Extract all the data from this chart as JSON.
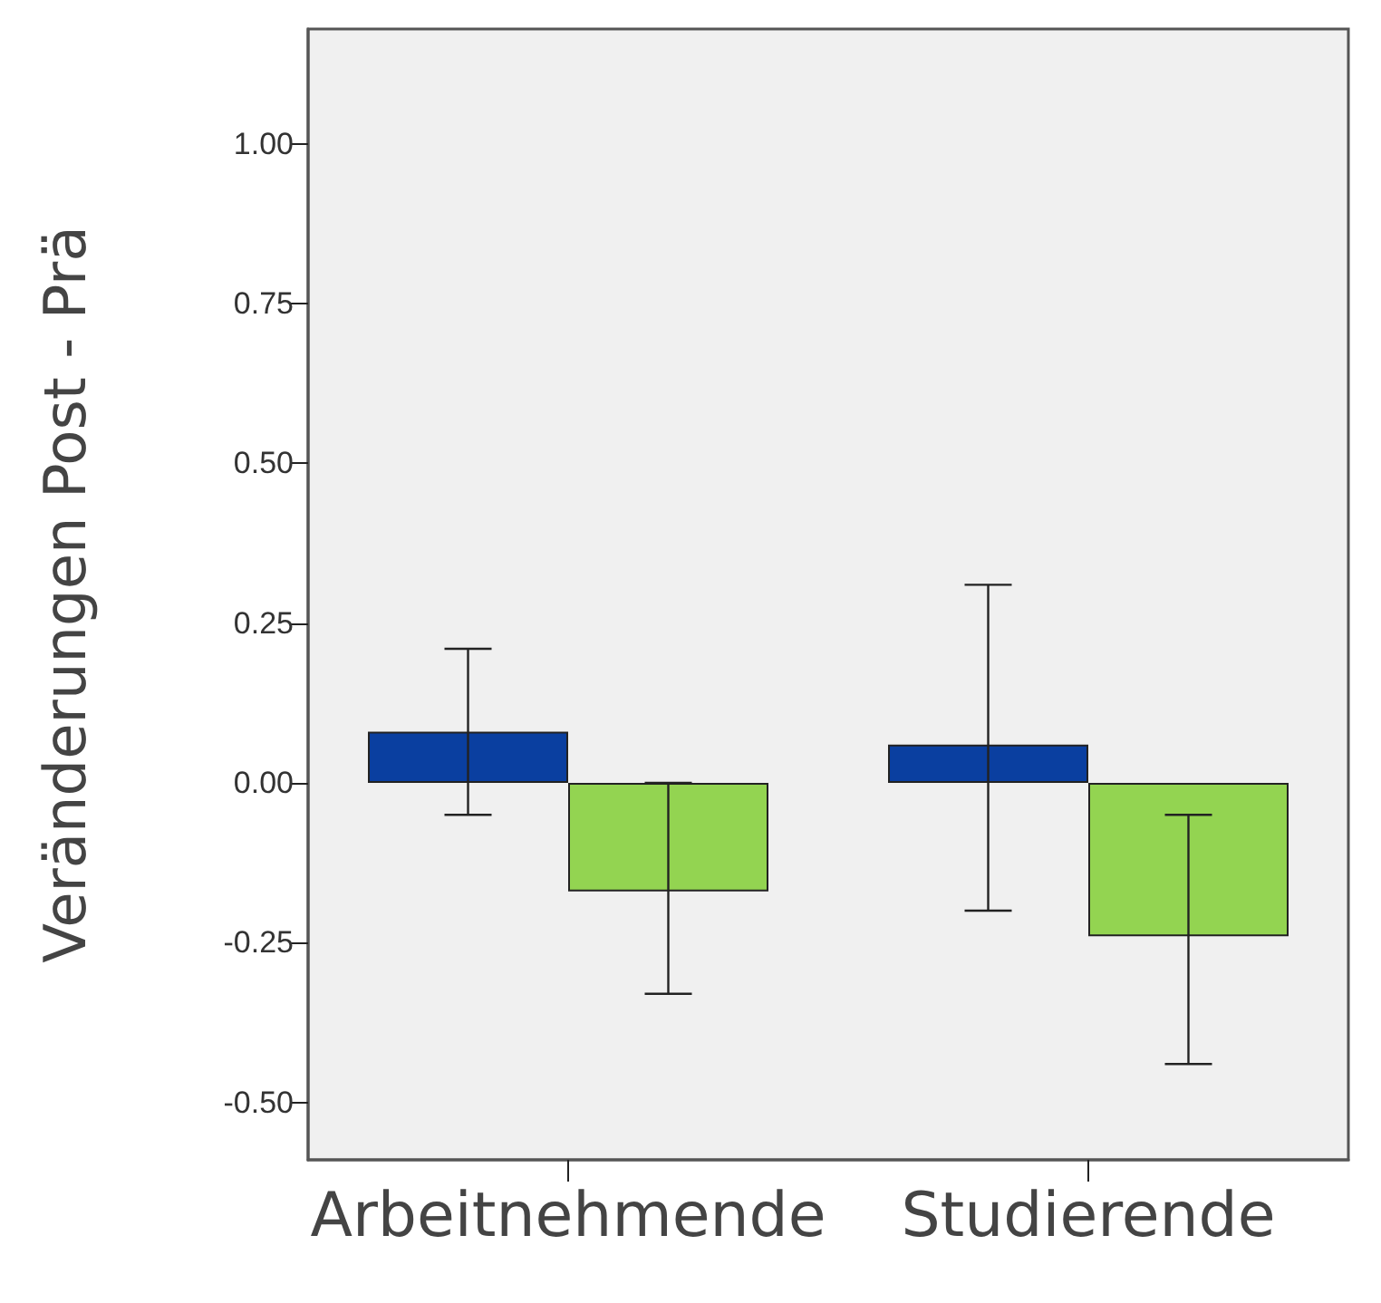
{
  "chart_data": {
    "type": "bar",
    "ylabel": "Veränderungen Post - Prä",
    "categories": [
      "Arbeitnehmende",
      "Studierende"
    ],
    "series": [
      {
        "color": "#0a3fa0",
        "values": [
          0.08,
          0.06
        ],
        "errors": [
          [
            -0.05,
            0.21
          ],
          [
            -0.2,
            0.31
          ]
        ]
      },
      {
        "color": "#93d451",
        "values": [
          -0.17,
          -0.24
        ],
        "errors": [
          [
            -0.33,
            0.0
          ],
          [
            -0.44,
            -0.05
          ]
        ]
      }
    ],
    "ylim": [
      -0.59,
      1.18
    ],
    "yticks": [
      {
        "value": -0.5,
        "label": "-0.50"
      },
      {
        "value": -0.25,
        "label": "-0.25"
      },
      {
        "value": 0,
        "label": "0.00"
      },
      {
        "value": 0.25,
        "label": "0.25"
      },
      {
        "value": 0.5,
        "label": "0.50"
      },
      {
        "value": 0.75,
        "label": "0.75"
      },
      {
        "value": 1,
        "label": "1.00"
      }
    ],
    "grid": false
  }
}
